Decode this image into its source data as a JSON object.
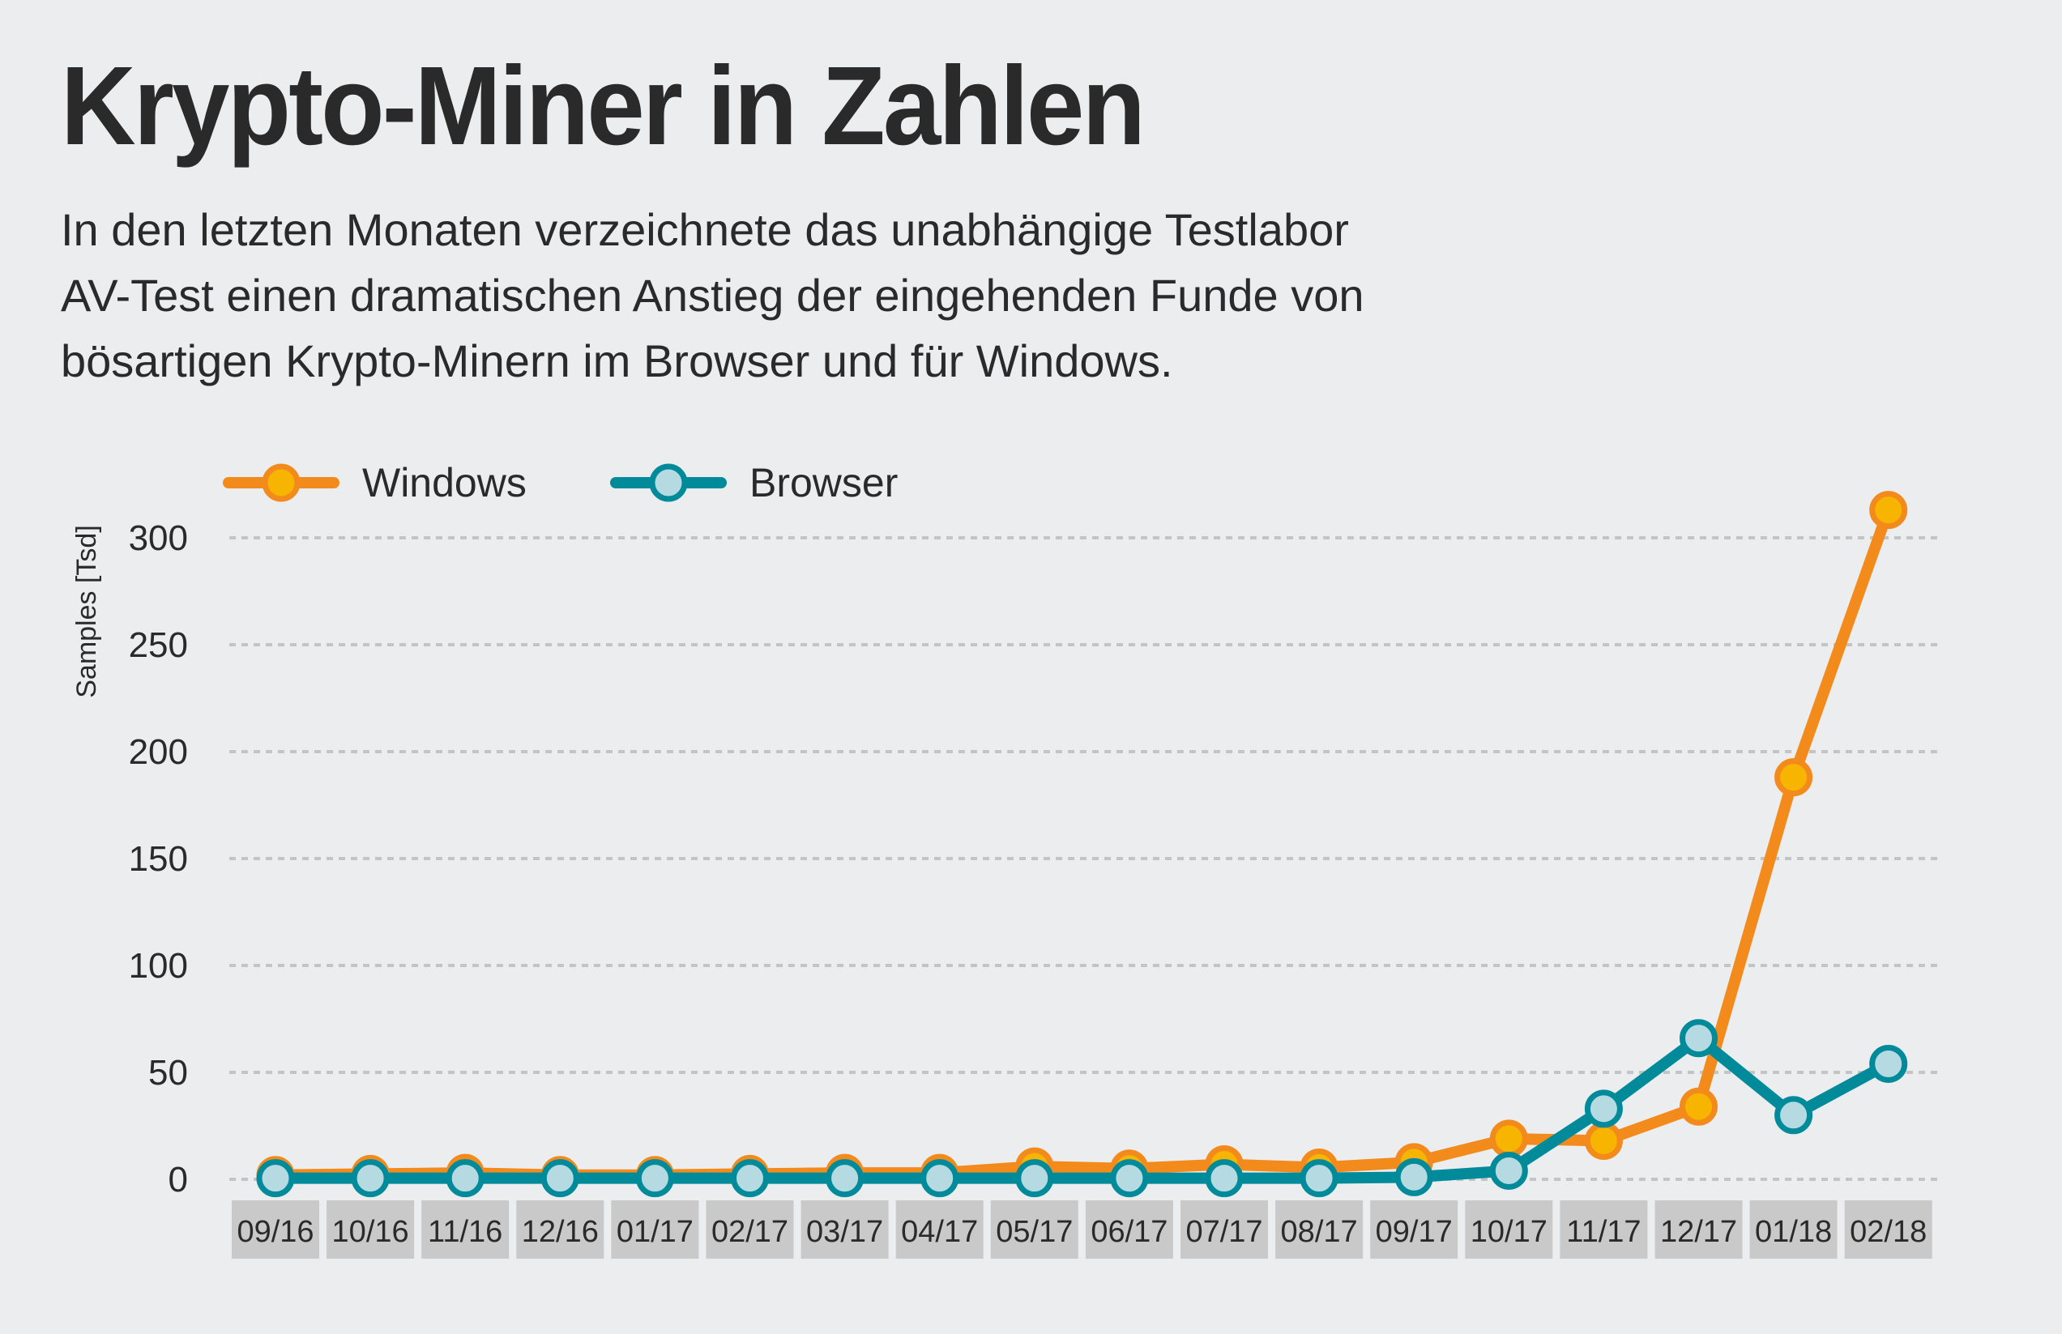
{
  "header": {
    "title": "Krypto-Miner in Zahlen",
    "subtitle_lines": [
      "In den letzten Monaten verzeichnete das unabhängige Testlabor",
      "AV-Test einen dramatischen Anstieg der eingehenden Funde von",
      "bösartigen Krypto-Minern im Browser und für Windows."
    ]
  },
  "colors": {
    "background": "#ecedef",
    "windows_line": "#f28a1c",
    "windows_marker_fill": "#f7b400",
    "browser_line": "#008a9a",
    "browser_marker_fill": "#b6dae2",
    "gridline": "#c4c4c4",
    "xtick_box": "#c8c9c8",
    "text": "#2a2a2a"
  },
  "chart_data": {
    "type": "line",
    "title": "Krypto-Miner in Zahlen",
    "xlabel": "",
    "ylabel": "Samples [Tsd]",
    "categories": [
      "09/16",
      "10/16",
      "11/16",
      "12/16",
      "01/17",
      "02/17",
      "03/17",
      "04/17",
      "05/17",
      "06/17",
      "07/17",
      "08/17",
      "09/17",
      "10/17",
      "11/17",
      "12/17",
      "01/18",
      "02/18"
    ],
    "ylim": [
      0,
      300
    ],
    "yticks": [
      0,
      50,
      100,
      150,
      200,
      250,
      300
    ],
    "grid": true,
    "legend_position": "top-left",
    "series": [
      {
        "name": "Windows",
        "values": [
          2,
          2.5,
          3,
          2,
          2,
          2.5,
          3,
          3,
          6,
          5,
          7,
          5.5,
          8,
          19,
          18,
          34,
          188,
          313
        ]
      },
      {
        "name": "Browser",
        "values": [
          0.5,
          0.5,
          0.5,
          0.5,
          0.5,
          0.5,
          0.5,
          0.5,
          0.5,
          0.5,
          0.5,
          0.5,
          1,
          4,
          33,
          66,
          30,
          54
        ]
      }
    ]
  }
}
